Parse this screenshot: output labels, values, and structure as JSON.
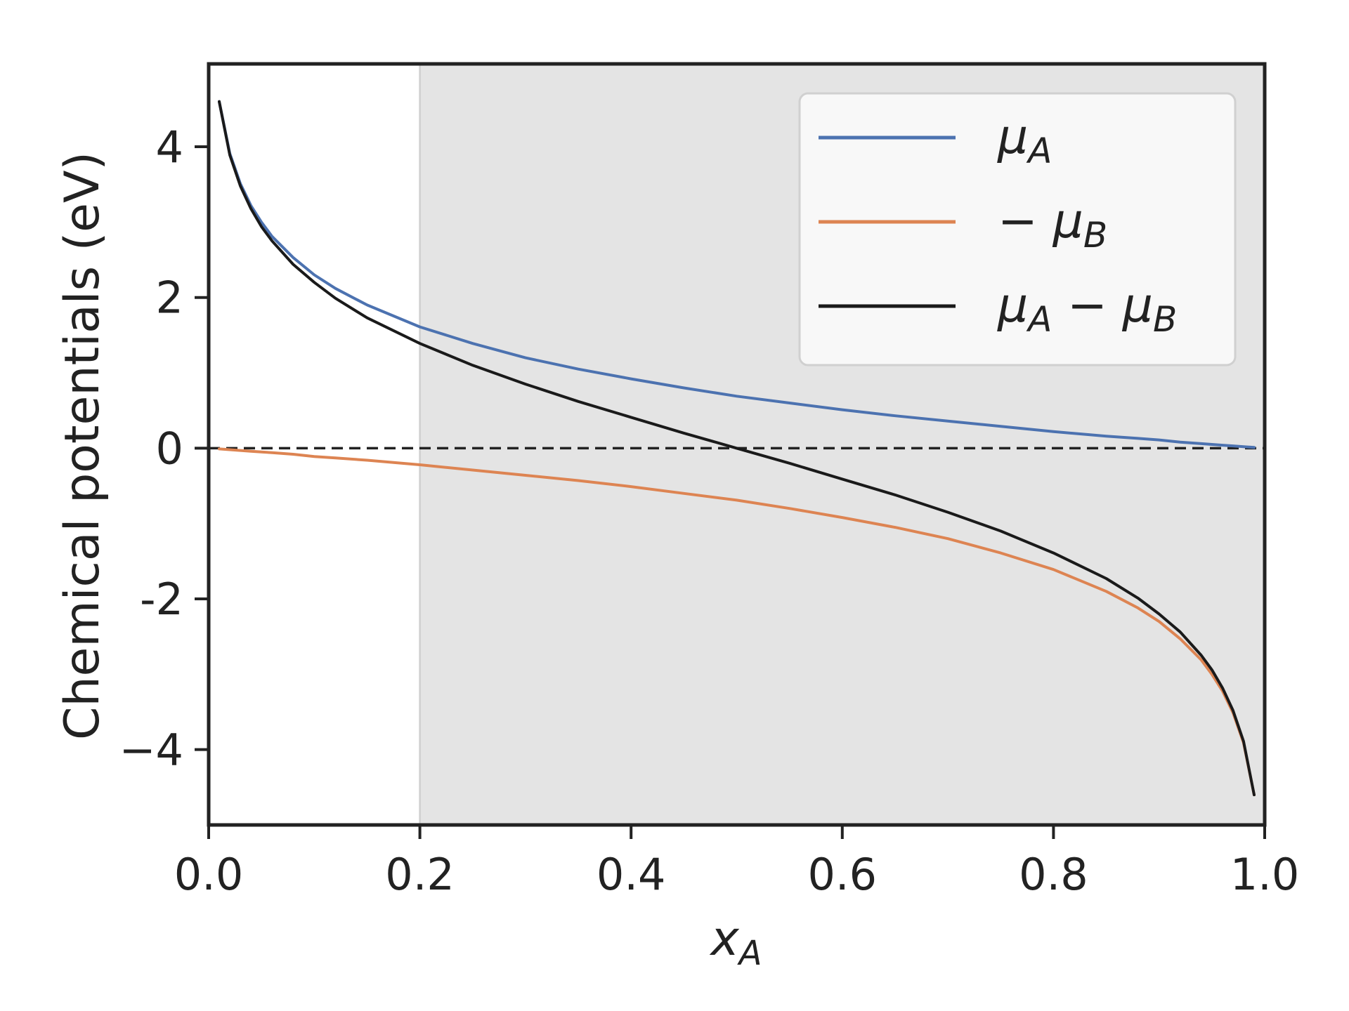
{
  "chart_data": {
    "type": "line",
    "xlabel": "x_A",
    "xlabel_main": "x",
    "xlabel_sub": "A",
    "ylabel": "Chemical potentials (eV)",
    "xlim": [
      0.0,
      1.0
    ],
    "ylim": [
      -5.0,
      5.1
    ],
    "x_ticks": [
      "0.0",
      "0.2",
      "0.4",
      "0.6",
      "0.8",
      "1.0"
    ],
    "y_ticks": [
      "4",
      "2",
      "0",
      "-2",
      "−4"
    ],
    "grid": false,
    "legend_position": "top-right",
    "shaded_region": {
      "x_start": 0.2,
      "x_end": 1.0,
      "color": "#e4e4e4"
    },
    "reference_line": {
      "y": 0,
      "style": "dashed",
      "color": "#222222"
    },
    "x": [
      0.01,
      0.02,
      0.03,
      0.04,
      0.05,
      0.06,
      0.08,
      0.1,
      0.12,
      0.15,
      0.2,
      0.25,
      0.3,
      0.35,
      0.4,
      0.45,
      0.5,
      0.55,
      0.6,
      0.65,
      0.7,
      0.75,
      0.8,
      0.85,
      0.88,
      0.9,
      0.92,
      0.94,
      0.95,
      0.96,
      0.97,
      0.98,
      0.99
    ],
    "series": [
      {
        "name": "μ_A",
        "legend_main": "μ",
        "legend_sub": "A",
        "legend_tail": "",
        "legend_tail_sub": "",
        "color": "#4c72b0",
        "values": [
          4.6,
          3.91,
          3.51,
          3.22,
          3.0,
          2.81,
          2.53,
          2.3,
          2.12,
          1.9,
          1.61,
          1.39,
          1.2,
          1.05,
          0.92,
          0.8,
          0.69,
          0.6,
          0.51,
          0.43,
          0.36,
          0.29,
          0.22,
          0.16,
          0.13,
          0.11,
          0.08,
          0.06,
          0.05,
          0.04,
          0.03,
          0.02,
          0.01
        ]
      },
      {
        "name": "− μ_B",
        "legend_main": "− μ",
        "legend_sub": "B",
        "legend_tail": "",
        "legend_tail_sub": "",
        "color": "#dd8452",
        "values": [
          -0.01,
          -0.02,
          -0.03,
          -0.04,
          -0.05,
          -0.06,
          -0.08,
          -0.11,
          -0.13,
          -0.16,
          -0.22,
          -0.29,
          -0.36,
          -0.43,
          -0.51,
          -0.6,
          -0.69,
          -0.8,
          -0.92,
          -1.05,
          -1.2,
          -1.39,
          -1.61,
          -1.9,
          -2.12,
          -2.3,
          -2.53,
          -2.81,
          -3.0,
          -3.22,
          -3.51,
          -3.91,
          -4.6
        ]
      },
      {
        "name": "μ_A − μ_B",
        "legend_main": "μ",
        "legend_sub": "A",
        "legend_tail": " − μ",
        "legend_tail_sub": "B",
        "color": "#1a1a1a",
        "values": [
          4.6,
          3.89,
          3.48,
          3.18,
          2.94,
          2.75,
          2.44,
          2.2,
          1.99,
          1.73,
          1.39,
          1.1,
          0.85,
          0.62,
          0.41,
          0.2,
          0.0,
          -0.2,
          -0.41,
          -0.62,
          -0.85,
          -1.1,
          -1.39,
          -1.73,
          -1.99,
          -2.2,
          -2.44,
          -2.75,
          -2.94,
          -3.18,
          -3.48,
          -3.89,
          -4.6
        ]
      }
    ]
  }
}
